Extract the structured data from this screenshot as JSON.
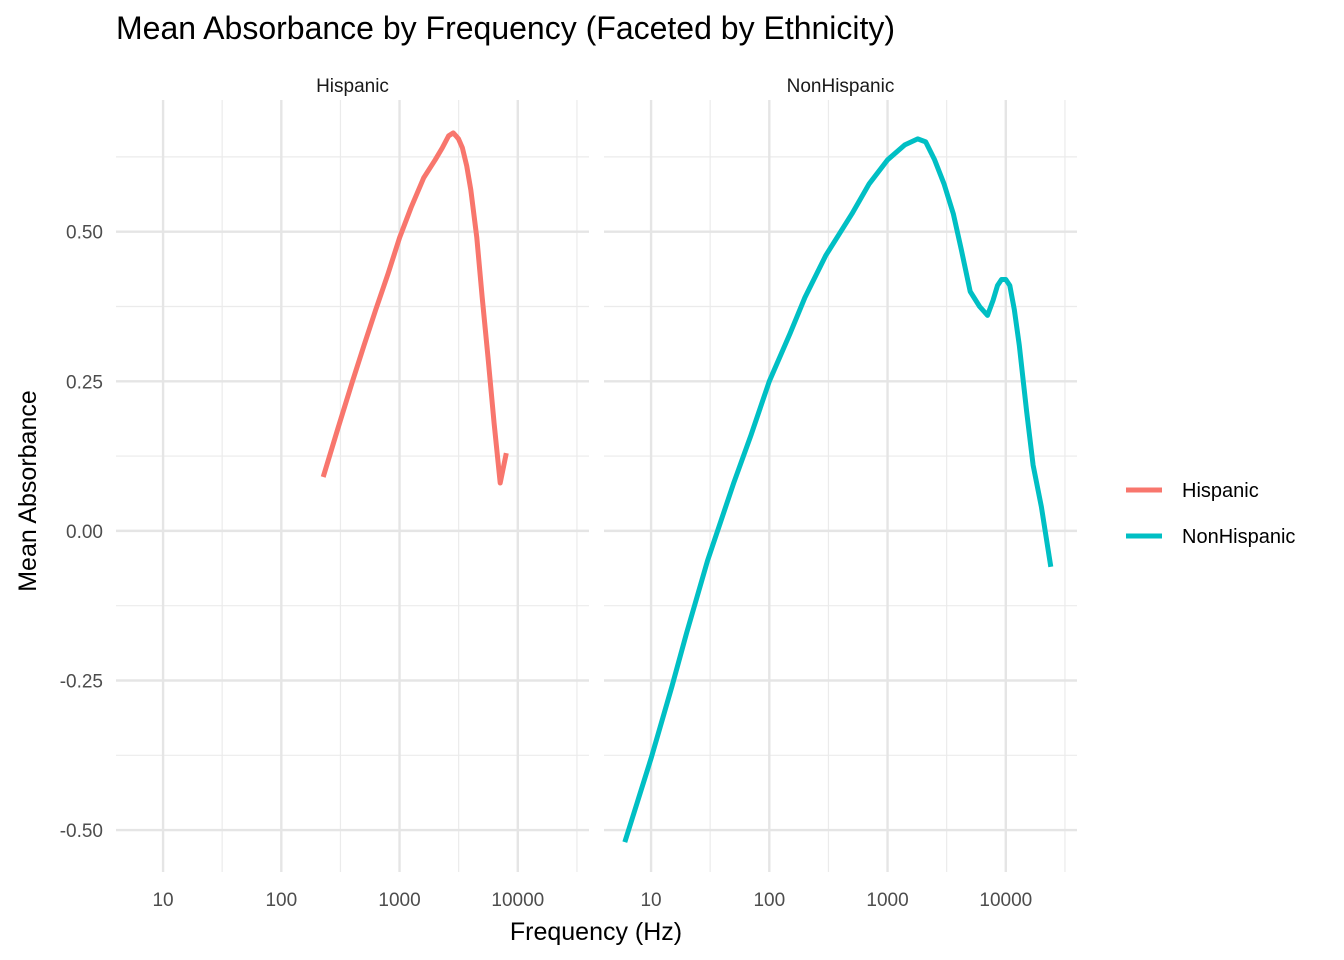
{
  "chart_data": {
    "type": "line",
    "title": "Mean Absorbance by Frequency (Faceted by Ethnicity)",
    "xlabel": "Frequency (Hz)",
    "ylabel": "Mean Absorbance",
    "x_scale": "log10",
    "xlim": [
      4,
      40000
    ],
    "ylim": [
      -0.57,
      0.72
    ],
    "x_ticks": [
      "10",
      "100",
      "1000",
      "10000"
    ],
    "x_tick_values": [
      10,
      100,
      1000,
      10000
    ],
    "y_ticks": [
      "0.50",
      "0.25",
      "0.00",
      "-0.25",
      "-0.50"
    ],
    "y_tick_values": [
      0.5,
      0.25,
      0.0,
      -0.25,
      -0.5
    ],
    "grid": true,
    "legend_position": "right",
    "facets": [
      "Hispanic",
      "NonHispanic"
    ],
    "series": [
      {
        "name": "Hispanic",
        "facet": "Hispanic",
        "color": "#F8766D",
        "x": [
          226,
          300,
          400,
          500,
          630,
          800,
          1000,
          1250,
          1600,
          2000,
          2300,
          2600,
          2850,
          3000,
          3150,
          3400,
          3700,
          4000,
          4500,
          5000,
          5600,
          6300,
          7100,
          8000
        ],
        "y": [
          0.09,
          0.17,
          0.25,
          0.31,
          0.37,
          0.43,
          0.49,
          0.54,
          0.59,
          0.62,
          0.64,
          0.66,
          0.665,
          0.66,
          0.655,
          0.64,
          0.61,
          0.57,
          0.49,
          0.39,
          0.29,
          0.18,
          0.08,
          0.13
        ]
      },
      {
        "name": "NonHispanic",
        "facet": "NonHispanic",
        "color": "#00BFC4",
        "x": [
          6,
          10,
          15,
          20,
          30,
          50,
          70,
          100,
          150,
          200,
          300,
          500,
          700,
          1000,
          1400,
          1800,
          2100,
          2500,
          3000,
          3600,
          4200,
          5000,
          6000,
          7000,
          7800,
          8500,
          9200,
          10000,
          10800,
          11800,
          13000,
          15000,
          17000,
          20000,
          24000
        ],
        "y": [
          -0.52,
          -0.38,
          -0.26,
          -0.17,
          -0.05,
          0.08,
          0.16,
          0.25,
          0.33,
          0.39,
          0.46,
          0.53,
          0.58,
          0.62,
          0.645,
          0.655,
          0.65,
          0.62,
          0.58,
          0.53,
          0.47,
          0.4,
          0.375,
          0.36,
          0.385,
          0.41,
          0.42,
          0.42,
          0.41,
          0.37,
          0.31,
          0.2,
          0.11,
          0.04,
          -0.06
        ]
      }
    ]
  }
}
